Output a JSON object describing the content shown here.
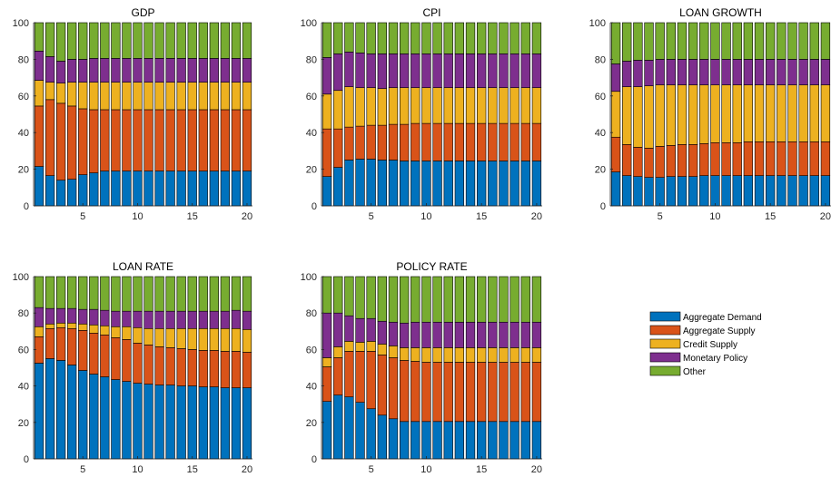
{
  "colors": {
    "Aggregate Demand": "#0072BD",
    "Aggregate Supply": "#D95319",
    "Credit Supply": "#EDB120",
    "Monetary Policy": "#7E2F8E",
    "Other": "#77AC30"
  },
  "legend": {
    "placement": "right-middle",
    "entries": [
      "Aggregate Demand",
      "Aggregate Supply",
      "Credit Supply",
      "Monetary Policy",
      "Other"
    ]
  },
  "chart_data": [
    {
      "type": "bar",
      "stacked": true,
      "title": "GDP",
      "x": [
        1,
        2,
        3,
        4,
        5,
        6,
        7,
        8,
        9,
        10,
        11,
        12,
        13,
        14,
        15,
        16,
        17,
        18,
        19,
        20
      ],
      "xticks": [
        5,
        10,
        15,
        20
      ],
      "ylim": [
        0,
        100
      ],
      "yticks": [
        0,
        20,
        40,
        60,
        80,
        100
      ],
      "series": [
        {
          "name": "Aggregate Demand",
          "values": [
            21.5,
            16.5,
            14,
            14.5,
            17,
            18,
            19,
            19,
            19,
            19,
            19,
            19,
            19,
            19,
            19,
            19,
            19,
            19,
            19,
            19
          ]
        },
        {
          "name": "Aggregate Supply",
          "values": [
            33,
            41.5,
            42,
            40,
            36,
            34.5,
            33.5,
            33.5,
            33.5,
            33.5,
            33.5,
            33.5,
            33.5,
            33.5,
            33.5,
            33.5,
            33.5,
            33.5,
            33.5,
            33.5
          ]
        },
        {
          "name": "Credit Supply",
          "values": [
            14,
            9.5,
            11,
            13,
            14.5,
            15,
            15,
            15,
            15,
            15,
            15,
            15,
            15,
            15,
            15,
            15,
            15,
            15,
            15,
            15
          ]
        },
        {
          "name": "Monetary Policy",
          "values": [
            16,
            14,
            12,
            12.5,
            12.5,
            13,
            13,
            13,
            13,
            13,
            13,
            13,
            13,
            13,
            13,
            13,
            13,
            13,
            13,
            13
          ]
        },
        {
          "name": "Other",
          "values": [
            15.5,
            18.5,
            21,
            20,
            20,
            19.5,
            19.5,
            19.5,
            19.5,
            19.5,
            19.5,
            19.5,
            19.5,
            19.5,
            19.5,
            19.5,
            19.5,
            19.5,
            19.5,
            19.5
          ]
        }
      ]
    },
    {
      "type": "bar",
      "stacked": true,
      "title": "CPI",
      "x": [
        1,
        2,
        3,
        4,
        5,
        6,
        7,
        8,
        9,
        10,
        11,
        12,
        13,
        14,
        15,
        16,
        17,
        18,
        19,
        20
      ],
      "xticks": [
        5,
        10,
        15,
        20
      ],
      "ylim": [
        0,
        100
      ],
      "yticks": [
        0,
        20,
        40,
        60,
        80,
        100
      ],
      "series": [
        {
          "name": "Aggregate Demand",
          "values": [
            16,
            21,
            25,
            25.5,
            25.5,
            25,
            25,
            24.5,
            24.5,
            24.5,
            24.5,
            24.5,
            24.5,
            24.5,
            24.5,
            24.5,
            24.5,
            24.5,
            24.5,
            24.5
          ]
        },
        {
          "name": "Aggregate Supply",
          "values": [
            26,
            21,
            18,
            18,
            18.5,
            19,
            19.5,
            20,
            20.5,
            20.5,
            20.5,
            20.5,
            20.5,
            20.5,
            20.5,
            20.5,
            20.5,
            20.5,
            20.5,
            20.5
          ]
        },
        {
          "name": "Credit Supply",
          "values": [
            19,
            21,
            22,
            21,
            20.5,
            20,
            20,
            20,
            19.5,
            19.5,
            19.5,
            19.5,
            19.5,
            19.5,
            19.5,
            19.5,
            19.5,
            19.5,
            19.5,
            19.5
          ]
        },
        {
          "name": "Monetary Policy",
          "values": [
            20,
            20,
            19,
            19,
            18.5,
            19,
            18.5,
            18.5,
            18.5,
            18.5,
            18.5,
            18.5,
            18.5,
            18.5,
            18.5,
            18.5,
            18.5,
            18.5,
            18.5,
            18.5
          ]
        },
        {
          "name": "Other",
          "values": [
            19,
            17,
            16,
            16.5,
            17,
            17,
            17,
            17,
            17,
            17,
            17,
            17,
            17,
            17,
            17,
            17,
            17,
            17,
            17,
            17
          ]
        }
      ]
    },
    {
      "type": "bar",
      "stacked": true,
      "title": "LOAN GROWTH",
      "x": [
        1,
        2,
        3,
        4,
        5,
        6,
        7,
        8,
        9,
        10,
        11,
        12,
        13,
        14,
        15,
        16,
        17,
        18,
        19,
        20
      ],
      "xticks": [
        5,
        10,
        15,
        20
      ],
      "ylim": [
        0,
        100
      ],
      "yticks": [
        0,
        20,
        40,
        60,
        80,
        100
      ],
      "series": [
        {
          "name": "Aggregate Demand",
          "values": [
            18.5,
            16.5,
            16,
            15.5,
            15.5,
            16,
            16,
            16,
            16.5,
            16.5,
            16.5,
            16.5,
            16.5,
            16.5,
            16.5,
            16.5,
            16.5,
            16.5,
            16.5,
            16.5
          ]
        },
        {
          "name": "Aggregate Supply",
          "values": [
            19,
            17,
            16,
            16,
            17,
            17,
            17.5,
            17.5,
            17.5,
            18,
            18,
            18,
            18.5,
            18.5,
            18.5,
            18.5,
            18.5,
            18.5,
            18.5,
            18.5
          ]
        },
        {
          "name": "Credit Supply",
          "values": [
            25,
            31.5,
            33,
            34,
            33.5,
            33,
            32.5,
            32.5,
            32,
            31.5,
            31.5,
            31.5,
            31,
            31,
            31,
            31,
            31,
            31,
            31,
            31
          ]
        },
        {
          "name": "Monetary Policy",
          "values": [
            15,
            14,
            14.5,
            14,
            14,
            14,
            14,
            14,
            14,
            14,
            14,
            14,
            14,
            14,
            14,
            14,
            14,
            14,
            14,
            14
          ]
        },
        {
          "name": "Other",
          "values": [
            22.5,
            21,
            20.5,
            20.5,
            20,
            20,
            20,
            20,
            20,
            20,
            20,
            20,
            20,
            20,
            20,
            20,
            20,
            20,
            20,
            20
          ]
        }
      ]
    },
    {
      "type": "bar",
      "stacked": true,
      "title": "LOAN RATE",
      "x": [
        1,
        2,
        3,
        4,
        5,
        6,
        7,
        8,
        9,
        10,
        11,
        12,
        13,
        14,
        15,
        16,
        17,
        18,
        19,
        20
      ],
      "xticks": [
        5,
        10,
        15,
        20
      ],
      "ylim": [
        0,
        100
      ],
      "yticks": [
        0,
        20,
        40,
        60,
        80,
        100
      ],
      "series": [
        {
          "name": "Aggregate Demand",
          "values": [
            52.5,
            55,
            54,
            51.5,
            48.5,
            46.5,
            45,
            43.5,
            42.5,
            41.5,
            41,
            40.5,
            40.5,
            40,
            40,
            39.5,
            39.5,
            39,
            39,
            39
          ]
        },
        {
          "name": "Aggregate Supply",
          "values": [
            14.5,
            16.5,
            18,
            20,
            22,
            22.5,
            23,
            23,
            23,
            22,
            21.5,
            21,
            20.5,
            20.5,
            20,
            20,
            20,
            20,
            20,
            19.5
          ]
        },
        {
          "name": "Credit Supply",
          "values": [
            5.5,
            2.5,
            2.5,
            3,
            3.5,
            4.5,
            5,
            6,
            7,
            8.5,
            9,
            10,
            10.5,
            11,
            11.5,
            12,
            12,
            12.5,
            12.5,
            12.5
          ]
        },
        {
          "name": "Monetary Policy",
          "values": [
            10.5,
            8.5,
            8,
            8,
            8,
            8.5,
            8.5,
            8.5,
            8.5,
            9,
            9.5,
            9.5,
            9.5,
            9.5,
            9.5,
            9.5,
            9.5,
            9.5,
            10,
            10
          ]
        },
        {
          "name": "Other",
          "values": [
            17,
            17.5,
            17.5,
            17.5,
            18,
            18,
            18.5,
            19,
            19,
            19,
            19,
            19,
            19,
            19,
            19,
            19,
            19,
            19,
            18.5,
            19
          ]
        }
      ]
    },
    {
      "type": "bar",
      "stacked": true,
      "title": "POLICY RATE",
      "x": [
        1,
        2,
        3,
        4,
        5,
        6,
        7,
        8,
        9,
        10,
        11,
        12,
        13,
        14,
        15,
        16,
        17,
        18,
        19,
        20
      ],
      "xticks": [
        5,
        10,
        15,
        20
      ],
      "ylim": [
        0,
        100
      ],
      "yticks": [
        0,
        20,
        40,
        60,
        80,
        100
      ],
      "series": [
        {
          "name": "Aggregate Demand",
          "values": [
            31.5,
            35,
            34,
            31,
            27.5,
            24,
            22,
            20.5,
            20.5,
            20.5,
            20.5,
            20.5,
            20.5,
            20.5,
            20.5,
            20.5,
            20.5,
            20.5,
            20.5,
            20.5
          ]
        },
        {
          "name": "Aggregate Supply",
          "values": [
            19,
            20.5,
            25,
            28,
            31.5,
            33,
            33.5,
            33.5,
            33,
            32.5,
            32.5,
            32.5,
            32.5,
            32.5,
            32.5,
            32.5,
            32.5,
            32.5,
            32.5,
            32.5
          ]
        },
        {
          "name": "Credit Supply",
          "values": [
            5,
            6,
            5.5,
            5,
            5.5,
            6,
            6.5,
            7,
            7.5,
            8,
            8,
            8,
            8,
            8,
            8,
            8,
            8,
            8,
            8,
            8
          ]
        },
        {
          "name": "Monetary Policy",
          "values": [
            24.5,
            18.5,
            14,
            13,
            12.5,
            12.5,
            13,
            13.5,
            14,
            14,
            14,
            14,
            14,
            14,
            14,
            14,
            14,
            14,
            14,
            14
          ]
        },
        {
          "name": "Other",
          "values": [
            20,
            20,
            21.5,
            23,
            23,
            24.5,
            25,
            25.5,
            25,
            25,
            25,
            25,
            25,
            25,
            25,
            25,
            25,
            25,
            25,
            25
          ]
        }
      ]
    }
  ]
}
